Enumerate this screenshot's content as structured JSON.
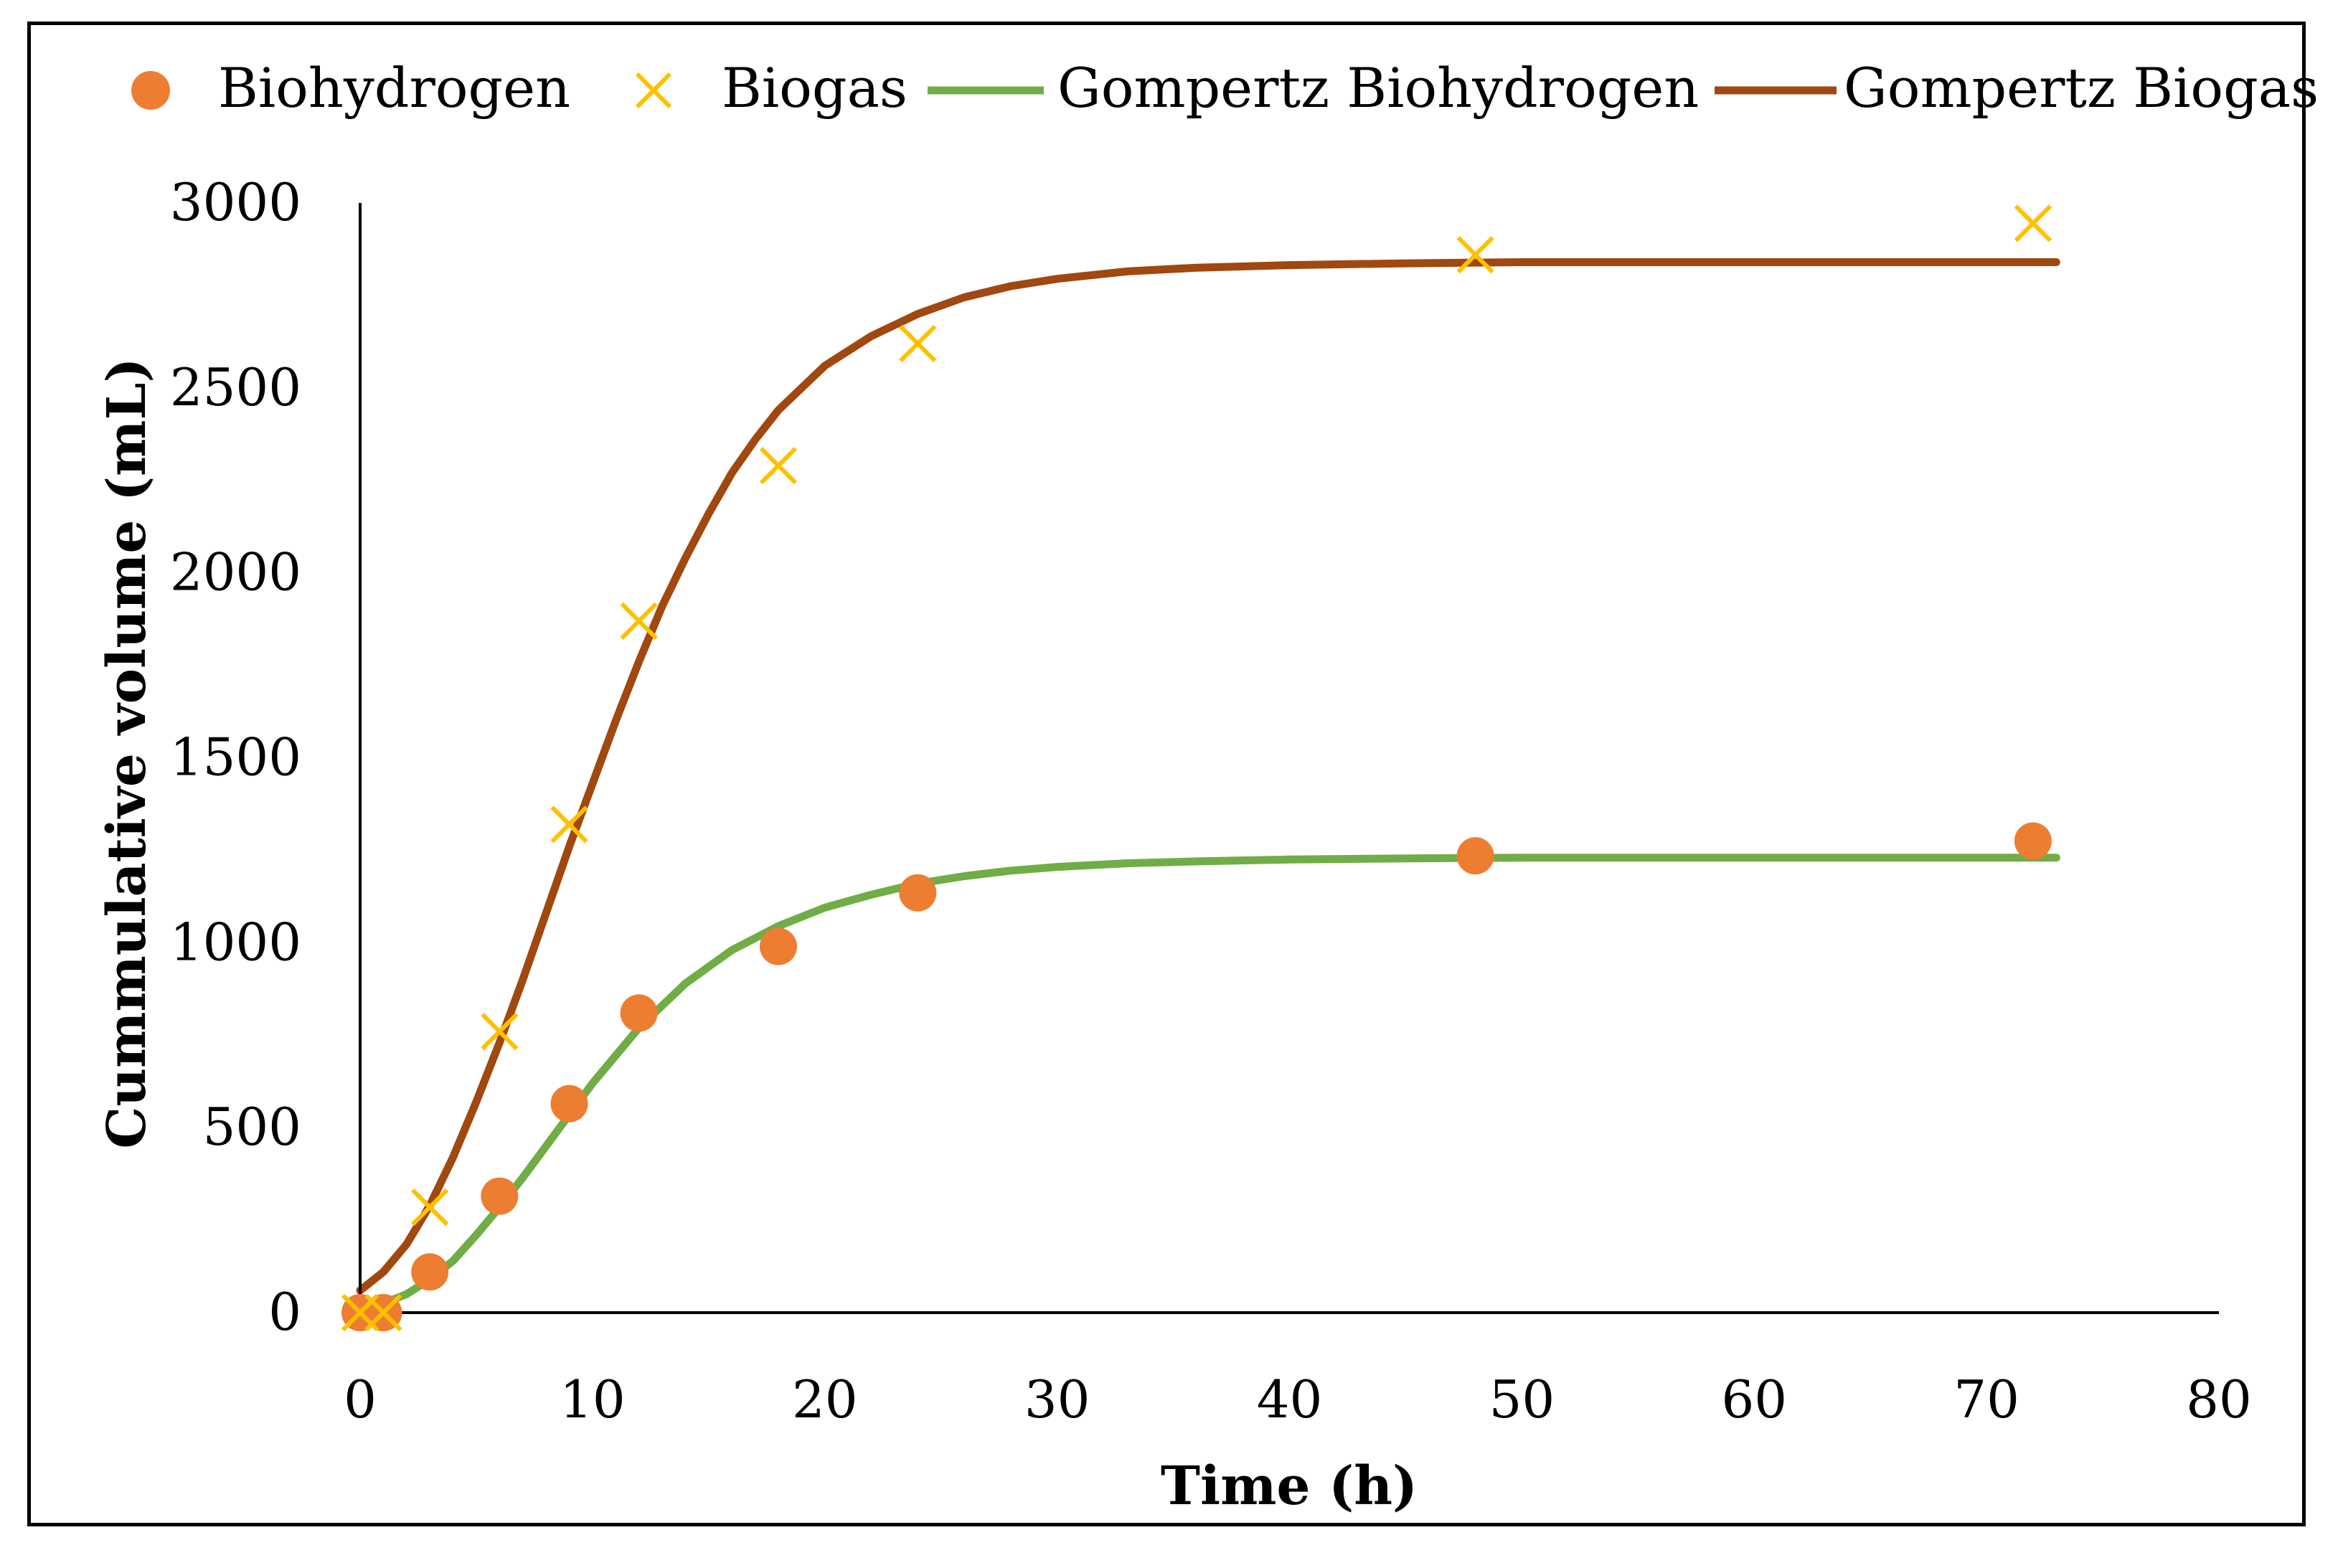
{
  "chart_data": {
    "type": "scatter",
    "title": "",
    "xlabel": "Time (h)",
    "ylabel": "Cummulative volume (mL)",
    "xlim": [
      0,
      80
    ],
    "ylim": [
      0,
      3000
    ],
    "xticks": [
      0,
      10,
      20,
      30,
      40,
      50,
      60,
      70,
      80
    ],
    "yticks": [
      0,
      500,
      1000,
      1500,
      2000,
      2500,
      3000
    ],
    "grid": false,
    "legend_position": "top",
    "series": [
      {
        "name": "Biohydrogen",
        "kind": "scatter",
        "marker": "circle",
        "color": "#ED7D31",
        "x": [
          0,
          1,
          3,
          6,
          9,
          12,
          18,
          24,
          48,
          72
        ],
        "y": [
          0,
          0,
          110,
          315,
          565,
          810,
          990,
          1135,
          1235,
          1275
        ]
      },
      {
        "name": "Biogas",
        "kind": "scatter",
        "marker": "x",
        "color": "#FFC000",
        "x": [
          0,
          1,
          3,
          6,
          9,
          12,
          18,
          24,
          48,
          72
        ],
        "y": [
          0,
          0,
          285,
          760,
          1320,
          1870,
          2290,
          2620,
          2860,
          2945
        ]
      },
      {
        "name": "Gompertz Biohydrogen",
        "kind": "line",
        "color": "#70AD47",
        "x": [
          0,
          1,
          2,
          3,
          4,
          5,
          6,
          7,
          8,
          9,
          10,
          12,
          14,
          16,
          18,
          20,
          22,
          24,
          26,
          28,
          30,
          33,
          36,
          40,
          45,
          50,
          55,
          60,
          65,
          70,
          73
        ],
        "y": [
          10,
          25,
          50,
          90,
          140,
          210,
          285,
          365,
          450,
          535,
          620,
          770,
          890,
          980,
          1045,
          1095,
          1130,
          1160,
          1180,
          1195,
          1205,
          1215,
          1220,
          1225,
          1228,
          1230,
          1230,
          1230,
          1230,
          1230,
          1230
        ]
      },
      {
        "name": "Gompertz Biogas",
        "kind": "line",
        "color": "#A0480F",
        "x": [
          0,
          1,
          2,
          3,
          4,
          5,
          6,
          7,
          8,
          9,
          10,
          11,
          12,
          13,
          14,
          15,
          16,
          17,
          18,
          20,
          22,
          24,
          26,
          28,
          30,
          33,
          36,
          40,
          45,
          50,
          55,
          60,
          65,
          70,
          73
        ],
        "y": [
          60,
          110,
          185,
          290,
          420,
          570,
          730,
          900,
          1080,
          1260,
          1430,
          1600,
          1760,
          1910,
          2040,
          2160,
          2270,
          2360,
          2440,
          2560,
          2640,
          2700,
          2745,
          2775,
          2795,
          2815,
          2825,
          2832,
          2837,
          2840,
          2840,
          2840,
          2840,
          2840,
          2840
        ]
      }
    ]
  }
}
